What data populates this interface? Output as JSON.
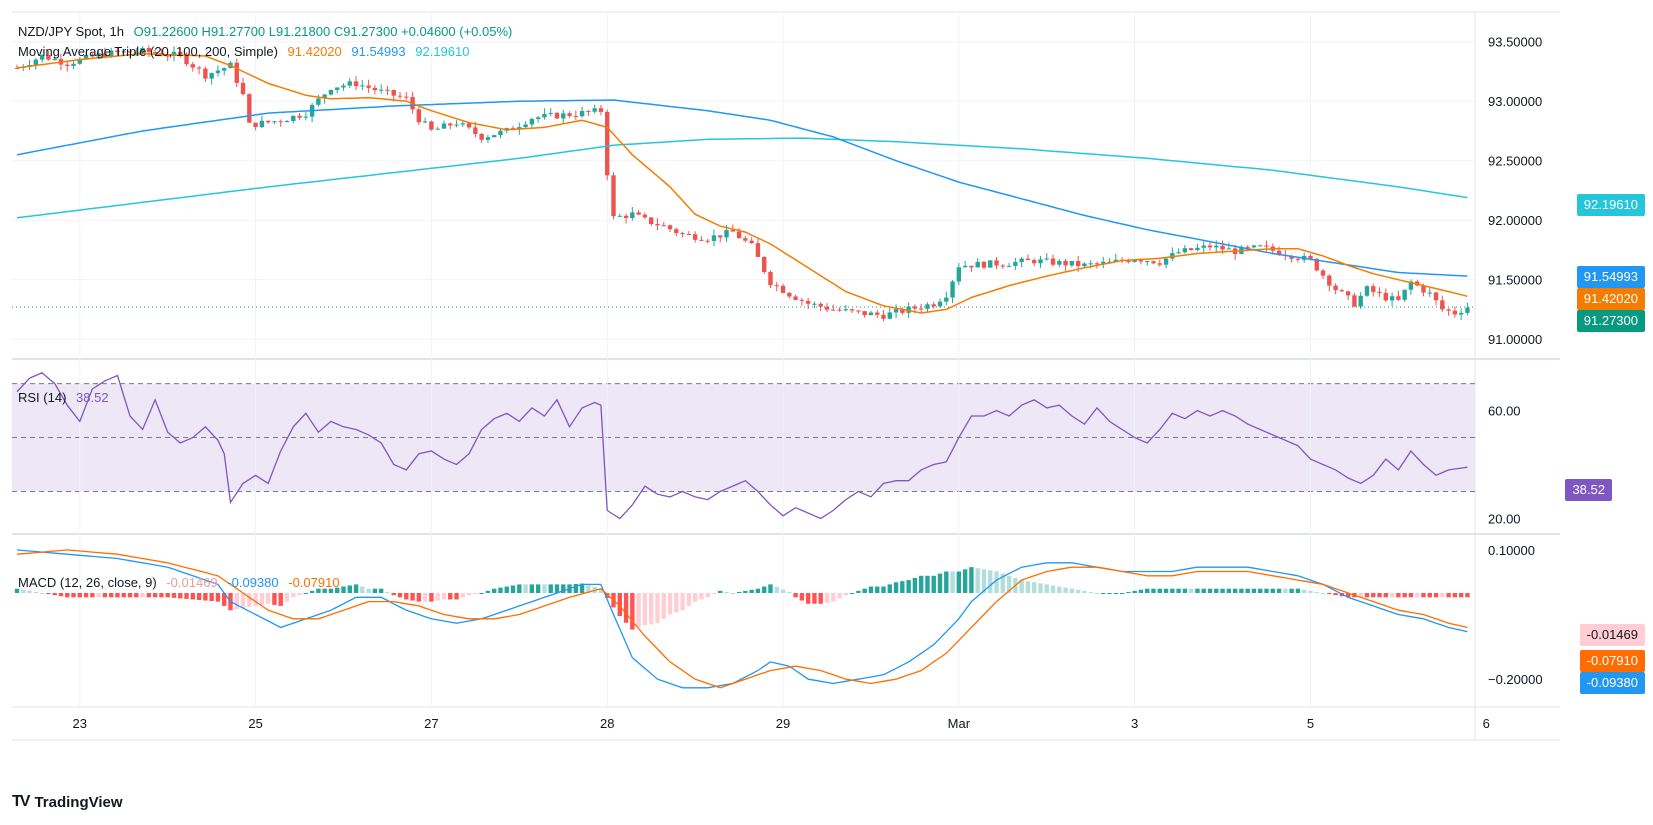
{
  "colors": {
    "up": "#26a69a",
    "down": "#ef5350",
    "ma20": "#f57c00",
    "ma100": "#2196f3",
    "ma200": "#26c6da",
    "rsi": "#7e57c2",
    "rsi_band": "#ede7f6",
    "macd": "#2196f3",
    "signal": "#ff6d00",
    "hist_up_strong": "#26a69a",
    "hist_up_weak": "#b2dfdb",
    "hist_down_strong": "#ff5252",
    "hist_down_weak": "#ffcdd2",
    "grid": "#f0f3fa",
    "axis_text": "#131722"
  },
  "header": {
    "symbol": "NZD/JPY Spot, 1h",
    "ohlc": "O91.22600  H91.27700  L91.21800  C91.27300  +0.04600 (+0.05%)",
    "ma_label": "Moving Average Triple (20, 100, 200, Simple)",
    "ma20_value": "91.42020",
    "ma100_value": "91.54993",
    "ma200_value": "92.19610"
  },
  "rsi_legend": {
    "label": "RSI (14)",
    "value": "38.52"
  },
  "macd_legend": {
    "label": "MACD (12, 26, close, 9)",
    "hist": "-0.01469",
    "macd": "-0.09380",
    "signal": "-0.07910"
  },
  "price_tags": {
    "ma200": "92.19610",
    "ma100": "91.54993",
    "ma20": "91.42020",
    "last": "91.27300"
  },
  "rsi_tag": "38.52",
  "macd_tags": {
    "hist": "-0.01469",
    "signal": "-0.07910",
    "macd": "-0.09380"
  },
  "footer": {
    "brand": "TradingView",
    "logo": "TV"
  },
  "chart_data": {
    "type": "candlestick",
    "title": "NZD/JPY Spot, 1h",
    "x_ticks": [
      {
        "i": 10,
        "label": "23"
      },
      {
        "i": 38,
        "label": "25"
      },
      {
        "i": 66,
        "label": "27"
      },
      {
        "i": 94,
        "label": "28"
      },
      {
        "i": 122,
        "label": "29"
      },
      {
        "i": 150,
        "label": "Mar"
      },
      {
        "i": 178,
        "label": "3"
      },
      {
        "i": 206,
        "label": "5"
      },
      {
        "i": 234,
        "label": "6"
      }
    ],
    "n_bars": 232,
    "price_axis": {
      "ylim": [
        90.85,
        93.75
      ],
      "ticks": [
        91.0,
        91.5,
        92.0,
        92.5,
        93.0,
        93.5
      ],
      "tick_labels": [
        "91.00000",
        "91.50000",
        "92.00000",
        "92.50000",
        "93.00000",
        "93.50000"
      ]
    },
    "rsi_axis": {
      "ylim": [
        15,
        78
      ],
      "ticks": [
        20,
        60
      ],
      "tick_labels": [
        "20.00",
        "60.00"
      ],
      "band": [
        30,
        70
      ],
      "mid": 50
    },
    "macd_axis": {
      "ylim": [
        -0.26,
        0.13
      ],
      "ticks": [
        0.1,
        -0.2
      ],
      "tick_labels": [
        "0.10000",
        "−0.20000"
      ]
    },
    "price_path": [
      [
        0,
        93.28
      ],
      [
        4,
        93.38
      ],
      [
        8,
        93.32
      ],
      [
        14,
        93.4
      ],
      [
        20,
        93.42
      ],
      [
        26,
        93.38
      ],
      [
        30,
        93.22
      ],
      [
        34,
        93.3
      ],
      [
        36,
        93.05
      ],
      [
        37,
        92.8
      ],
      [
        42,
        92.84
      ],
      [
        46,
        92.9
      ],
      [
        50,
        93.12
      ],
      [
        54,
        93.15
      ],
      [
        58,
        93.08
      ],
      [
        62,
        93.02
      ],
      [
        64,
        92.85
      ],
      [
        66,
        92.75
      ],
      [
        70,
        92.82
      ],
      [
        74,
        92.7
      ],
      [
        78,
        92.75
      ],
      [
        82,
        92.86
      ],
      [
        86,
        92.88
      ],
      [
        90,
        92.9
      ],
      [
        93,
        92.92
      ],
      [
        94,
        92.4
      ],
      [
        95,
        92.02
      ],
      [
        98,
        92.05
      ],
      [
        100,
        92.0
      ],
      [
        103,
        91.95
      ],
      [
        106,
        91.88
      ],
      [
        110,
        91.85
      ],
      [
        114,
        91.9
      ],
      [
        117,
        91.78
      ],
      [
        120,
        91.48
      ],
      [
        123,
        91.38
      ],
      [
        126,
        91.3
      ],
      [
        130,
        91.25
      ],
      [
        134,
        91.22
      ],
      [
        138,
        91.2
      ],
      [
        142,
        91.25
      ],
      [
        146,
        91.3
      ],
      [
        148,
        91.38
      ],
      [
        150,
        91.62
      ],
      [
        154,
        91.63
      ],
      [
        158,
        91.64
      ],
      [
        162,
        91.66
      ],
      [
        166,
        91.64
      ],
      [
        170,
        91.62
      ],
      [
        174,
        91.64
      ],
      [
        178,
        91.68
      ],
      [
        182,
        91.65
      ],
      [
        185,
        91.73
      ],
      [
        190,
        91.78
      ],
      [
        194,
        91.74
      ],
      [
        198,
        91.77
      ],
      [
        202,
        91.72
      ],
      [
        206,
        91.66
      ],
      [
        210,
        91.42
      ],
      [
        213,
        91.3
      ],
      [
        215,
        91.42
      ],
      [
        218,
        91.35
      ],
      [
        220,
        91.32
      ],
      [
        222,
        91.48
      ],
      [
        225,
        91.38
      ],
      [
        227,
        91.25
      ],
      [
        229,
        91.22
      ],
      [
        231,
        91.27
      ]
    ],
    "ma20_path": [
      [
        0,
        93.28
      ],
      [
        10,
        93.35
      ],
      [
        20,
        93.4
      ],
      [
        30,
        93.38
      ],
      [
        34,
        93.3
      ],
      [
        40,
        93.15
      ],
      [
        46,
        93.05
      ],
      [
        50,
        93.02
      ],
      [
        56,
        93.03
      ],
      [
        62,
        93.0
      ],
      [
        66,
        92.92
      ],
      [
        72,
        92.82
      ],
      [
        78,
        92.76
      ],
      [
        84,
        92.78
      ],
      [
        90,
        92.84
      ],
      [
        94,
        92.78
      ],
      [
        98,
        92.55
      ],
      [
        104,
        92.28
      ],
      [
        108,
        92.05
      ],
      [
        112,
        91.95
      ],
      [
        116,
        91.9
      ],
      [
        120,
        91.8
      ],
      [
        126,
        91.6
      ],
      [
        132,
        91.4
      ],
      [
        138,
        91.28
      ],
      [
        144,
        91.22
      ],
      [
        148,
        91.25
      ],
      [
        152,
        91.35
      ],
      [
        158,
        91.45
      ],
      [
        164,
        91.53
      ],
      [
        170,
        91.6
      ],
      [
        176,
        91.66
      ],
      [
        182,
        91.68
      ],
      [
        188,
        91.72
      ],
      [
        194,
        91.74
      ],
      [
        200,
        91.76
      ],
      [
        204,
        91.76
      ],
      [
        208,
        91.7
      ],
      [
        212,
        91.62
      ],
      [
        216,
        91.55
      ],
      [
        220,
        91.5
      ],
      [
        224,
        91.45
      ],
      [
        228,
        91.4
      ],
      [
        231,
        91.36
      ]
    ],
    "ma100_path": [
      [
        0,
        92.55
      ],
      [
        20,
        92.75
      ],
      [
        40,
        92.9
      ],
      [
        60,
        92.96
      ],
      [
        80,
        93.0
      ],
      [
        95,
        93.01
      ],
      [
        110,
        92.92
      ],
      [
        120,
        92.84
      ],
      [
        130,
        92.7
      ],
      [
        140,
        92.5
      ],
      [
        150,
        92.32
      ],
      [
        160,
        92.18
      ],
      [
        170,
        92.04
      ],
      [
        180,
        91.92
      ],
      [
        190,
        91.82
      ],
      [
        200,
        91.72
      ],
      [
        210,
        91.64
      ],
      [
        220,
        91.56
      ],
      [
        231,
        91.53
      ]
    ],
    "ma200_path": [
      [
        0,
        92.02
      ],
      [
        20,
        92.15
      ],
      [
        40,
        92.28
      ],
      [
        60,
        92.4
      ],
      [
        80,
        92.52
      ],
      [
        95,
        92.63
      ],
      [
        110,
        92.68
      ],
      [
        125,
        92.69
      ],
      [
        140,
        92.66
      ],
      [
        160,
        92.6
      ],
      [
        180,
        92.52
      ],
      [
        200,
        92.42
      ],
      [
        220,
        92.28
      ],
      [
        231,
        92.19
      ]
    ],
    "rsi_path": [
      [
        0,
        67
      ],
      [
        2,
        72
      ],
      [
        4,
        74
      ],
      [
        6,
        70
      ],
      [
        8,
        62
      ],
      [
        10,
        56
      ],
      [
        12,
        68
      ],
      [
        14,
        71
      ],
      [
        16,
        73
      ],
      [
        18,
        58
      ],
      [
        20,
        53
      ],
      [
        22,
        64
      ],
      [
        24,
        52
      ],
      [
        26,
        48
      ],
      [
        28,
        50
      ],
      [
        30,
        54
      ],
      [
        32,
        49
      ],
      [
        33,
        44
      ],
      [
        34,
        26
      ],
      [
        36,
        33
      ],
      [
        38,
        36
      ],
      [
        40,
        33
      ],
      [
        42,
        45
      ],
      [
        44,
        54
      ],
      [
        46,
        59
      ],
      [
        48,
        52
      ],
      [
        50,
        56
      ],
      [
        52,
        54
      ],
      [
        54,
        53
      ],
      [
        56,
        51
      ],
      [
        58,
        48
      ],
      [
        60,
        40
      ],
      [
        62,
        38
      ],
      [
        64,
        44
      ],
      [
        66,
        45
      ],
      [
        68,
        42
      ],
      [
        70,
        40
      ],
      [
        72,
        44
      ],
      [
        74,
        53
      ],
      [
        76,
        57
      ],
      [
        78,
        59
      ],
      [
        80,
        56
      ],
      [
        82,
        61
      ],
      [
        84,
        58
      ],
      [
        86,
        64
      ],
      [
        88,
        54
      ],
      [
        90,
        61
      ],
      [
        92,
        63
      ],
      [
        93,
        62
      ],
      [
        94,
        23
      ],
      [
        96,
        20
      ],
      [
        98,
        25
      ],
      [
        100,
        32
      ],
      [
        102,
        29
      ],
      [
        104,
        28
      ],
      [
        106,
        30
      ],
      [
        108,
        28
      ],
      [
        110,
        27
      ],
      [
        112,
        30
      ],
      [
        114,
        32
      ],
      [
        116,
        34
      ],
      [
        118,
        30
      ],
      [
        120,
        25
      ],
      [
        122,
        21
      ],
      [
        124,
        24
      ],
      [
        126,
        22
      ],
      [
        128,
        20
      ],
      [
        130,
        23
      ],
      [
        132,
        27
      ],
      [
        134,
        30
      ],
      [
        136,
        28
      ],
      [
        138,
        33
      ],
      [
        140,
        34
      ],
      [
        142,
        34
      ],
      [
        144,
        38
      ],
      [
        146,
        40
      ],
      [
        148,
        41
      ],
      [
        150,
        50
      ],
      [
        152,
        58
      ],
      [
        154,
        58
      ],
      [
        156,
        60
      ],
      [
        158,
        58
      ],
      [
        160,
        62
      ],
      [
        162,
        64
      ],
      [
        164,
        61
      ],
      [
        166,
        62
      ],
      [
        168,
        58
      ],
      [
        170,
        55
      ],
      [
        172,
        61
      ],
      [
        174,
        56
      ],
      [
        176,
        53
      ],
      [
        178,
        50
      ],
      [
        180,
        48
      ],
      [
        182,
        53
      ],
      [
        184,
        59
      ],
      [
        186,
        57
      ],
      [
        188,
        60
      ],
      [
        190,
        58
      ],
      [
        192,
        60
      ],
      [
        194,
        58
      ],
      [
        196,
        55
      ],
      [
        198,
        53
      ],
      [
        200,
        51
      ],
      [
        202,
        49
      ],
      [
        204,
        47
      ],
      [
        206,
        42
      ],
      [
        208,
        40
      ],
      [
        210,
        38
      ],
      [
        212,
        35
      ],
      [
        214,
        33
      ],
      [
        216,
        36
      ],
      [
        218,
        42
      ],
      [
        220,
        38
      ],
      [
        222,
        45
      ],
      [
        224,
        40
      ],
      [
        226,
        36
      ],
      [
        228,
        38
      ],
      [
        231,
        39
      ]
    ],
    "macd_path": [
      [
        0,
        0.1
      ],
      [
        8,
        0.09
      ],
      [
        16,
        0.08
      ],
      [
        24,
        0.06
      ],
      [
        32,
        0.02
      ],
      [
        34,
        -0.02
      ],
      [
        38,
        -0.05
      ],
      [
        42,
        -0.08
      ],
      [
        46,
        -0.06
      ],
      [
        50,
        -0.04
      ],
      [
        54,
        -0.01
      ],
      [
        58,
        -0.01
      ],
      [
        62,
        -0.04
      ],
      [
        66,
        -0.06
      ],
      [
        70,
        -0.07
      ],
      [
        74,
        -0.06
      ],
      [
        78,
        -0.04
      ],
      [
        82,
        -0.02
      ],
      [
        86,
        0.0
      ],
      [
        90,
        0.02
      ],
      [
        93,
        0.02
      ],
      [
        95,
        -0.05
      ],
      [
        98,
        -0.15
      ],
      [
        102,
        -0.2
      ],
      [
        106,
        -0.22
      ],
      [
        110,
        -0.22
      ],
      [
        114,
        -0.21
      ],
      [
        118,
        -0.18
      ],
      [
        120,
        -0.16
      ],
      [
        123,
        -0.17
      ],
      [
        126,
        -0.2
      ],
      [
        130,
        -0.21
      ],
      [
        134,
        -0.2
      ],
      [
        138,
        -0.19
      ],
      [
        142,
        -0.16
      ],
      [
        146,
        -0.12
      ],
      [
        150,
        -0.06
      ],
      [
        152,
        -0.02
      ],
      [
        156,
        0.03
      ],
      [
        160,
        0.06
      ],
      [
        164,
        0.07
      ],
      [
        168,
        0.07
      ],
      [
        172,
        0.06
      ],
      [
        176,
        0.05
      ],
      [
        180,
        0.05
      ],
      [
        184,
        0.05
      ],
      [
        188,
        0.06
      ],
      [
        192,
        0.06
      ],
      [
        196,
        0.06
      ],
      [
        200,
        0.05
      ],
      [
        204,
        0.04
      ],
      [
        208,
        0.02
      ],
      [
        212,
        -0.01
      ],
      [
        216,
        -0.03
      ],
      [
        220,
        -0.05
      ],
      [
        224,
        -0.06
      ],
      [
        228,
        -0.08
      ],
      [
        231,
        -0.09
      ]
    ],
    "signal_path": [
      [
        0,
        0.09
      ],
      [
        8,
        0.1
      ],
      [
        16,
        0.09
      ],
      [
        24,
        0.07
      ],
      [
        32,
        0.04
      ],
      [
        36,
        0.0
      ],
      [
        40,
        -0.04
      ],
      [
        44,
        -0.06
      ],
      [
        48,
        -0.06
      ],
      [
        52,
        -0.04
      ],
      [
        56,
        -0.02
      ],
      [
        60,
        -0.02
      ],
      [
        64,
        -0.03
      ],
      [
        68,
        -0.05
      ],
      [
        72,
        -0.06
      ],
      [
        76,
        -0.06
      ],
      [
        80,
        -0.05
      ],
      [
        84,
        -0.03
      ],
      [
        88,
        -0.01
      ],
      [
        93,
        0.01
      ],
      [
        96,
        -0.03
      ],
      [
        100,
        -0.1
      ],
      [
        104,
        -0.16
      ],
      [
        108,
        -0.2
      ],
      [
        112,
        -0.22
      ],
      [
        116,
        -0.2
      ],
      [
        120,
        -0.18
      ],
      [
        124,
        -0.17
      ],
      [
        128,
        -0.18
      ],
      [
        132,
        -0.2
      ],
      [
        136,
        -0.21
      ],
      [
        140,
        -0.2
      ],
      [
        144,
        -0.18
      ],
      [
        148,
        -0.14
      ],
      [
        152,
        -0.08
      ],
      [
        156,
        -0.02
      ],
      [
        160,
        0.03
      ],
      [
        164,
        0.05
      ],
      [
        168,
        0.06
      ],
      [
        172,
        0.06
      ],
      [
        176,
        0.05
      ],
      [
        180,
        0.04
      ],
      [
        184,
        0.04
      ],
      [
        188,
        0.05
      ],
      [
        192,
        0.05
      ],
      [
        196,
        0.05
      ],
      [
        200,
        0.04
      ],
      [
        204,
        0.03
      ],
      [
        208,
        0.02
      ],
      [
        212,
        0.0
      ],
      [
        216,
        -0.02
      ],
      [
        220,
        -0.04
      ],
      [
        224,
        -0.05
      ],
      [
        228,
        -0.07
      ],
      [
        231,
        -0.08
      ]
    ]
  }
}
